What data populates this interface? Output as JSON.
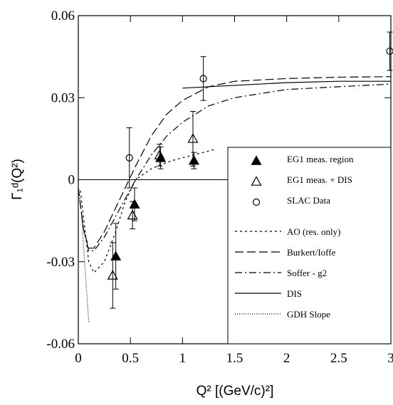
{
  "chart_data": {
    "type": "scatter-line",
    "xlabel": "Q² [(GeV/c)²]",
    "ylabel": "Γ₁ᵈ(Q²)",
    "xlim": [
      0,
      3
    ],
    "ylim": [
      -0.06,
      0.06
    ],
    "xticks": [
      0,
      0.5,
      1,
      1.5,
      2,
      2.5,
      3
    ],
    "yticks": [
      -0.06,
      -0.03,
      0,
      0.03,
      0.06
    ],
    "zero_line": true,
    "legend": "lower right",
    "series": [
      {
        "name": "EG1 meas. region",
        "kind": "points",
        "marker": "filled-triangle",
        "color": "#000000",
        "x": [
          0.36,
          0.54,
          0.79,
          1.11
        ],
        "values": [
          -0.028,
          -0.009,
          0.008,
          0.007
        ],
        "errors": [
          0.012,
          0.006,
          0.004,
          0.003
        ]
      },
      {
        "name": "EG1 meas. + DIS",
        "kind": "points",
        "marker": "open-triangle",
        "color": "#000000",
        "x": [
          0.33,
          0.52,
          0.78,
          1.1
        ],
        "values": [
          -0.035,
          -0.013,
          0.009,
          0.015
        ],
        "errors": [
          0.012,
          0.005,
          0.004,
          0.01
        ]
      },
      {
        "name": "SLAC Data",
        "kind": "points",
        "marker": "open-circle",
        "color": "#000000",
        "x": [
          0.49,
          1.2,
          2.99
        ],
        "values": [
          0.008,
          0.037,
          0.047
        ],
        "errors": [
          0.011,
          0.008,
          0.007
        ]
      },
      {
        "name": "AO (res. only)",
        "kind": "line",
        "dash": "3,4",
        "color": "#000000",
        "x": [
          0.02,
          0.1,
          0.15,
          0.25,
          0.35,
          0.45,
          0.55,
          0.7,
          0.9,
          1.1,
          1.3
        ],
        "values": [
          -0.004,
          -0.03,
          -0.034,
          -0.03,
          -0.02,
          -0.008,
          0,
          0.004,
          0.007,
          0.009,
          0.011
        ]
      },
      {
        "name": "Burkert/Ioffe",
        "kind": "line",
        "dash": "12,5",
        "color": "#000000",
        "x": [
          0,
          0.05,
          0.1,
          0.15,
          0.25,
          0.35,
          0.45,
          0.55,
          0.7,
          0.85,
          1,
          1.25,
          1.5,
          2,
          2.5,
          3
        ],
        "values": [
          -0.003,
          -0.018,
          -0.025,
          -0.025,
          -0.019,
          -0.011,
          -0.003,
          0.005,
          0.016,
          0.024,
          0.029,
          0.034,
          0.036,
          0.037,
          0.0375,
          0.0377
        ]
      },
      {
        "name": "Soffer - g2",
        "kind": "line",
        "dash": "10,4,2,4",
        "color": "#000000",
        "x": [
          0,
          0.05,
          0.1,
          0.15,
          0.25,
          0.35,
          0.45,
          0.55,
          0.7,
          0.85,
          1,
          1.25,
          1.5,
          2,
          2.5,
          3
        ],
        "values": [
          -0.003,
          -0.018,
          -0.026,
          -0.026,
          -0.021,
          -0.014,
          -0.007,
          0,
          0.009,
          0.016,
          0.021,
          0.027,
          0.03,
          0.033,
          0.034,
          0.035
        ]
      },
      {
        "name": "DIS",
        "kind": "line",
        "dash": "none",
        "color": "#000000",
        "x": [
          1,
          1.5,
          2,
          2.5,
          3
        ],
        "values": [
          0.0335,
          0.0345,
          0.0355,
          0.036,
          0.036
        ]
      },
      {
        "name": "GDH Slope",
        "kind": "line",
        "dash": "1,2",
        "color": "#000000",
        "x": [
          0.03,
          0.06,
          0.1
        ],
        "values": [
          -0.012,
          -0.03,
          -0.052
        ]
      }
    ]
  }
}
